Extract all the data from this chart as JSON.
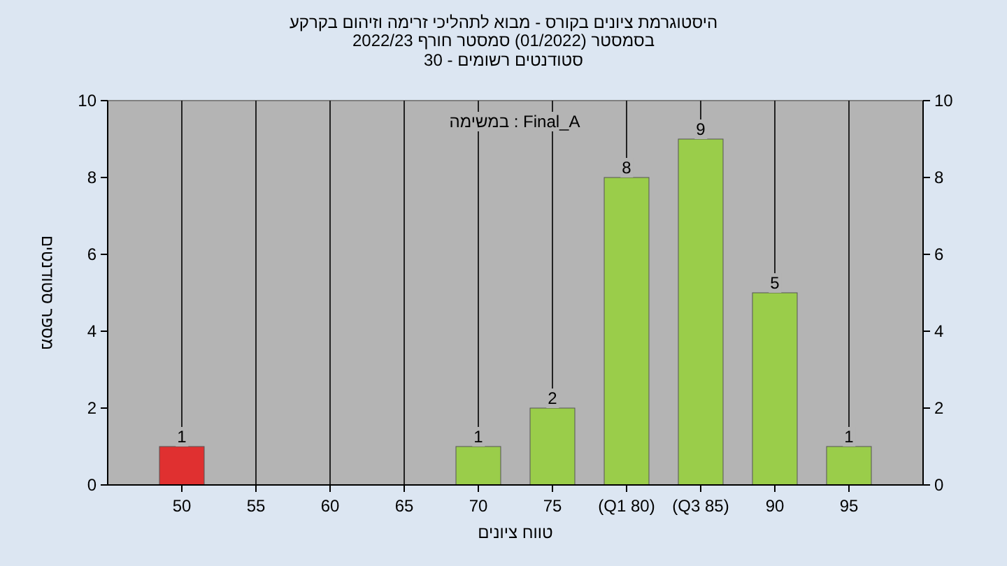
{
  "chart_data": {
    "type": "bar",
    "title": "היסטוגרמת ציונים בקורס - מבוא לתהליכי זרימה וזיהום בקרקע",
    "subtitle": "בסמסטר  (01/2022)  סמסטר חורף 2022/23",
    "annotations": [
      "סטודנטים רשומים - 30",
      "במשימה : Final_A"
    ],
    "xlabel": "טווח ציונים",
    "ylabel": "מספר סטודנטים",
    "categories": [
      "50",
      "55",
      "60",
      "65",
      "70",
      "75",
      "(Q1 80)",
      "(Q3 85)",
      "90",
      "95"
    ],
    "values": [
      1,
      0,
      0,
      0,
      1,
      2,
      8,
      9,
      5,
      1
    ],
    "value_labels": [
      "1",
      null,
      null,
      null,
      "1",
      "2",
      "8",
      "9",
      "5",
      "1"
    ],
    "colors": [
      "#e03030",
      "#9acd4a",
      "#9acd4a",
      "#9acd4a",
      "#9acd4a",
      "#9acd4a",
      "#9acd4a",
      "#9acd4a",
      "#9acd4a",
      "#9acd4a"
    ],
    "ylim": [
      0,
      10
    ],
    "yticks": [
      0,
      2,
      4,
      6,
      8,
      10
    ],
    "y2lim": [
      0,
      10
    ],
    "y2ticks": [
      0,
      2,
      4,
      6,
      8,
      10
    ],
    "grid": "x"
  }
}
